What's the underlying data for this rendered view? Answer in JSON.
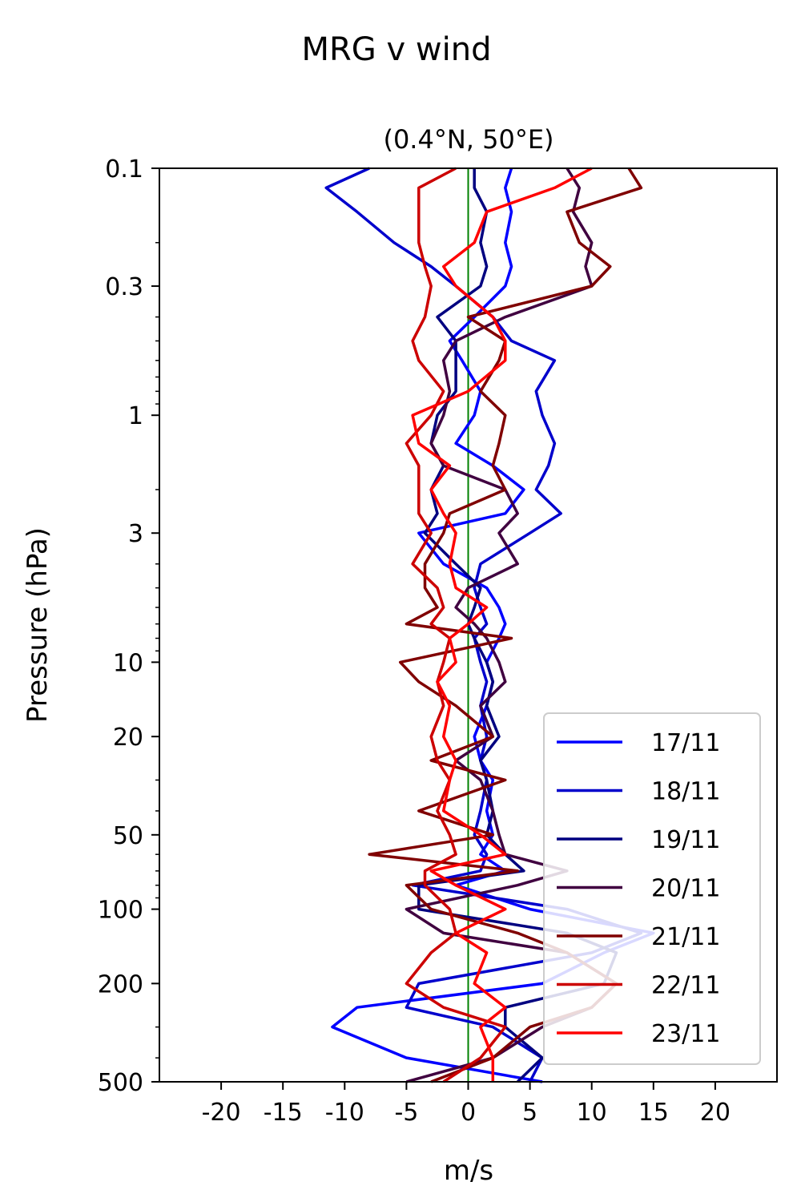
{
  "suptitle": "MRG v wind",
  "chart_data": {
    "type": "line",
    "title": "(0.4°N, 50°E)",
    "xlabel": "m/s",
    "ylabel": "Pressure (hPa)",
    "xlim": [
      -25,
      25
    ],
    "ylim": [
      500,
      0.1
    ],
    "yscale": "log",
    "xticks": [
      -20,
      -15,
      -10,
      -5,
      0,
      5,
      10,
      15,
      20
    ],
    "xtick_labels": [
      "-20",
      "-15",
      "-10",
      "-5",
      "0",
      "5",
      "10",
      "15",
      "20"
    ],
    "yticks": [
      0.1,
      0.3,
      1,
      3,
      10,
      20,
      50,
      100,
      200,
      500
    ],
    "ytick_labels": [
      "0.1",
      "0.3",
      "1",
      "3",
      "10",
      "20",
      "50",
      "100",
      "200",
      "500"
    ],
    "zero_line_color": "#008000",
    "legend_position": "lower-right",
    "pressure_levels": [
      0.1,
      0.12,
      0.15,
      0.2,
      0.25,
      0.3,
      0.4,
      0.5,
      0.6,
      0.8,
      1,
      1.3,
      1.6,
      2,
      2.5,
      3,
      4,
      5,
      6,
      7,
      8,
      10,
      12,
      15,
      20,
      25,
      30,
      40,
      50,
      60,
      70,
      80,
      100,
      125,
      150,
      200,
      250,
      300,
      400,
      500
    ],
    "series": [
      {
        "name": "17/11",
        "color": "#0000ff",
        "values": [
          3.5,
          3,
          3.5,
          3,
          3.5,
          3,
          0.5,
          -1.5,
          -0.5,
          1,
          0.5,
          -1,
          2,
          4.5,
          3,
          -4,
          -2,
          1.5,
          2.5,
          3,
          2.5,
          1.5,
          2,
          1.5,
          0.5,
          1,
          2,
          1.5,
          2,
          1,
          3,
          -1,
          5,
          15,
          11,
          6,
          -9,
          -11,
          -5,
          6
        ]
      },
      {
        "name": "18/11",
        "color": "#0000cc",
        "values": [
          -8,
          -11.5,
          -9,
          -6,
          -3,
          -1,
          2,
          3.5,
          7,
          5.5,
          6,
          7,
          6.5,
          5.5,
          7.5,
          5,
          1,
          0.5,
          1,
          1.5,
          0.5,
          1,
          1.5,
          1,
          1.5,
          1,
          1.5,
          1,
          0.5,
          1.5,
          1,
          -4.5,
          8,
          14,
          10,
          -4,
          -5,
          2,
          6,
          5
        ]
      },
      {
        "name": "19/11",
        "color": "#000080",
        "values": [
          0.5,
          0.5,
          1.5,
          1,
          1.5,
          1,
          -2.5,
          -1,
          -1,
          -1,
          -2.5,
          -3,
          -2,
          -3,
          -2.5,
          -3.5,
          -1,
          1,
          0.5,
          0,
          0.5,
          1.5,
          2,
          1.5,
          2.5,
          1,
          1.5,
          2,
          1.5,
          3,
          4.5,
          -4,
          -4,
          8,
          12,
          11,
          3,
          3,
          6,
          4
        ]
      },
      {
        "name": "20/11",
        "color": "#400040",
        "values": [
          8,
          9,
          8.5,
          10,
          9.5,
          10,
          3,
          -1,
          -2,
          -1.5,
          -2,
          -3,
          -2,
          3,
          4,
          2.5,
          4,
          0,
          -1,
          0.5,
          1.5,
          2.5,
          3,
          1,
          2,
          -1,
          1,
          2,
          2.5,
          3,
          8,
          4,
          -5,
          -2,
          8,
          12,
          10,
          6,
          2,
          -5
        ]
      },
      {
        "name": "21/11",
        "color": "#800000",
        "values": [
          13,
          14,
          8,
          9,
          11.5,
          10,
          0,
          3,
          2.5,
          1,
          3,
          2.5,
          2,
          3,
          -1.5,
          -2,
          -3.5,
          -3.5,
          -2.5,
          -5,
          3.5,
          -5.5,
          -4,
          -1,
          2,
          -3,
          3,
          -4,
          2,
          -8,
          4,
          -5,
          -3,
          4,
          8,
          12,
          10,
          5,
          2,
          -3
        ]
      },
      {
        "name": "22/11",
        "color": "#cc0000",
        "values": [
          -1,
          -4,
          -4,
          -4,
          -3.5,
          -3,
          -3.5,
          -4.5,
          -4,
          -2,
          -3,
          -5,
          -4,
          -4,
          -4,
          -3,
          -4.5,
          -2.5,
          -2,
          -3,
          -1.5,
          -2,
          -2.5,
          -2,
          -3,
          -2.5,
          -1.5,
          -2.5,
          -1.5,
          -1,
          -3.5,
          -3.5,
          -1.5,
          -1,
          -3,
          -5,
          -2,
          3,
          1,
          -2
        ]
      },
      {
        "name": "23/11",
        "color": "#ff0000",
        "values": [
          10,
          7,
          1.5,
          0.5,
          -2,
          -1,
          2,
          3,
          3,
          0,
          -4.5,
          -4,
          -1.5,
          -3,
          -2,
          -1,
          -1.5,
          -1,
          1.5,
          0,
          -1.5,
          -1,
          -2.5,
          -1.5,
          -2,
          -1,
          -1.5,
          -2,
          1,
          3,
          -3,
          -1,
          3,
          -1,
          1.5,
          0.5,
          3,
          1,
          2,
          2
        ]
      }
    ]
  }
}
